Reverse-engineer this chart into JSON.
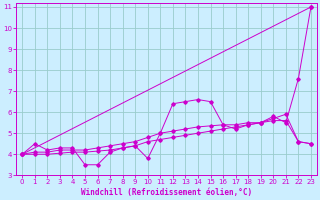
{
  "background_color": "#cceeff",
  "grid_color": "#99cccc",
  "line_color": "#cc00cc",
  "xlabel": "Windchill (Refroidissement éolien,°C)",
  "xlim": [
    -0.5,
    23.5
  ],
  "ylim": [
    3,
    11.2
  ],
  "xticks": [
    0,
    1,
    2,
    3,
    4,
    5,
    6,
    7,
    8,
    9,
    10,
    11,
    12,
    13,
    14,
    15,
    16,
    17,
    18,
    19,
    20,
    21,
    22,
    23
  ],
  "yticks": [
    3,
    4,
    5,
    6,
    7,
    8,
    9,
    10,
    11
  ],
  "line_diagonal": {
    "x": [
      0,
      23
    ],
    "y": [
      4.0,
      11.0
    ]
  },
  "line_jagged": {
    "x": [
      0,
      1,
      2,
      3,
      4,
      5,
      6,
      7,
      8,
      9,
      10,
      11,
      12,
      13,
      14,
      15,
      16,
      17,
      18,
      19,
      20,
      21,
      22,
      23
    ],
    "y": [
      4.0,
      4.5,
      4.2,
      4.3,
      4.3,
      3.5,
      3.5,
      4.1,
      4.3,
      4.4,
      3.8,
      5.0,
      6.4,
      6.5,
      6.6,
      6.5,
      5.4,
      5.2,
      5.4,
      5.5,
      5.8,
      5.5,
      7.6,
      11.0
    ]
  },
  "line_smooth1": {
    "x": [
      0,
      1,
      2,
      3,
      4,
      5,
      6,
      7,
      8,
      9,
      10,
      11,
      12,
      13,
      14,
      15,
      16,
      17,
      18,
      19,
      20,
      21,
      22,
      23
    ],
    "y": [
      4.0,
      4.1,
      4.1,
      4.2,
      4.2,
      4.2,
      4.3,
      4.4,
      4.5,
      4.6,
      4.8,
      5.0,
      5.1,
      5.2,
      5.3,
      5.35,
      5.4,
      5.4,
      5.5,
      5.5,
      5.6,
      5.6,
      4.6,
      4.5
    ]
  },
  "line_smooth2": {
    "x": [
      0,
      1,
      2,
      3,
      4,
      5,
      6,
      7,
      8,
      9,
      10,
      11,
      12,
      13,
      14,
      15,
      16,
      17,
      18,
      19,
      20,
      21,
      22,
      23
    ],
    "y": [
      4.0,
      4.0,
      4.0,
      4.05,
      4.1,
      4.1,
      4.15,
      4.2,
      4.3,
      4.4,
      4.6,
      4.7,
      4.8,
      4.9,
      5.0,
      5.1,
      5.2,
      5.3,
      5.4,
      5.5,
      5.7,
      5.9,
      4.6,
      4.5
    ]
  },
  "figsize": [
    3.2,
    2.0
  ],
  "dpi": 100
}
